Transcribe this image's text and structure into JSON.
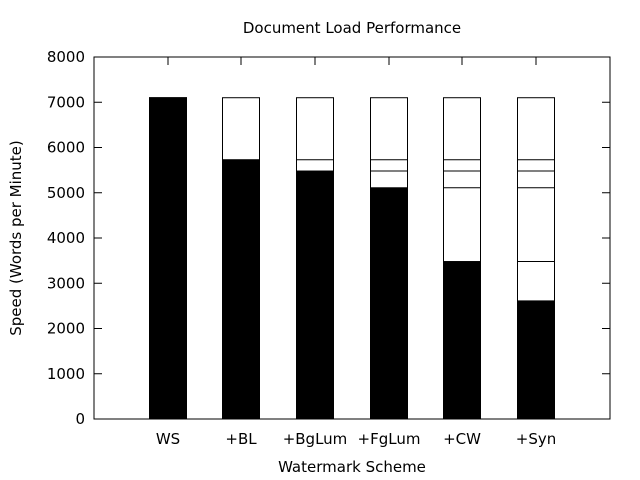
{
  "chart_data": {
    "type": "bar",
    "subtype": "overlaid-stacked",
    "title": "Document Load Performance",
    "xlabel": "Watermark Scheme",
    "ylabel": "Speed (Words per Minute)",
    "ylim": [
      0,
      8000
    ],
    "yticks": [
      0,
      1000,
      2000,
      3000,
      4000,
      5000,
      6000,
      7000,
      8000
    ],
    "grid": false,
    "legend": "none",
    "bar_color": "#000000",
    "outline_color": "#000000",
    "categories": [
      "WS",
      "+BL",
      "+BgLum",
      "+FgLum",
      "+CW",
      "+Syn"
    ],
    "baseline_total": 7100,
    "values": [
      7100,
      5730,
      5480,
      5110,
      3480,
      2610
    ],
    "segment_boundaries": [
      [],
      [],
      [
        5730
      ],
      [
        5730,
        5480
      ],
      [
        5730,
        5480,
        5110
      ],
      [
        5730,
        5480,
        5110,
        3480
      ]
    ]
  }
}
